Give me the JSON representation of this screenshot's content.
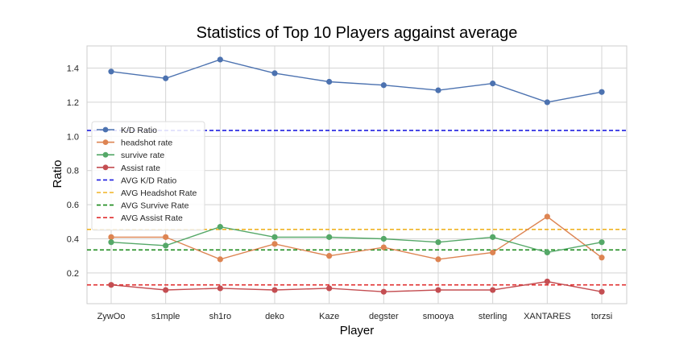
{
  "chart_data": {
    "type": "line",
    "title": "Statistics of Top 10 Players aggainst average",
    "xlabel": "Player",
    "ylabel": "Ratio",
    "categories": [
      "ZywOo",
      "s1mple",
      "sh1ro",
      "deko",
      "Kaze",
      "degster",
      "smooya",
      "sterling",
      "XANTARES",
      "torzsi"
    ],
    "ylim": [
      0.02,
      1.53
    ],
    "yticks": [
      "0.2",
      "0.4",
      "0.6",
      "0.8",
      "1.0",
      "1.2",
      "1.4"
    ],
    "grid": true,
    "legend_position": "center-left",
    "series": [
      {
        "name": "K/D Ratio",
        "color": "#4c72b0",
        "values": [
          1.38,
          1.34,
          1.45,
          1.37,
          1.32,
          1.3,
          1.27,
          1.31,
          1.2,
          1.26
        ]
      },
      {
        "name": "headshot rate",
        "color": "#dd8452",
        "values": [
          0.41,
          0.41,
          0.28,
          0.37,
          0.3,
          0.35,
          0.28,
          0.32,
          0.53,
          0.29
        ]
      },
      {
        "name": "survive rate",
        "color": "#55a868",
        "values": [
          0.38,
          0.36,
          0.47,
          0.41,
          0.41,
          0.4,
          0.38,
          0.41,
          0.32,
          0.38
        ]
      },
      {
        "name": "Assist rate",
        "color": "#c44e52",
        "values": [
          0.13,
          0.1,
          0.11,
          0.1,
          0.11,
          0.09,
          0.1,
          0.1,
          0.15,
          0.09
        ]
      }
    ],
    "averages": [
      {
        "name": "AVG K/D Ratio",
        "color": "#1f1fe0",
        "value": 1.035
      },
      {
        "name": "AVG Headshot Rate",
        "color": "#f0b323",
        "value": 0.455
      },
      {
        "name": "AVG Survive Rate",
        "color": "#1a8a1a",
        "value": 0.335
      },
      {
        "name": "AVG Assist Rate",
        "color": "#e03030",
        "value": 0.13
      }
    ]
  }
}
